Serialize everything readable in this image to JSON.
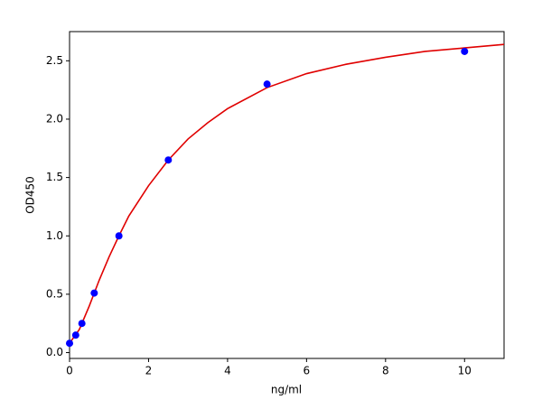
{
  "chart_data": {
    "type": "scatter",
    "x_label": "ng/ml",
    "y_label": "OD450",
    "xlim": [
      0,
      11
    ],
    "ylim": [
      -0.05,
      2.75
    ],
    "xticks": [
      0,
      2,
      4,
      6,
      8,
      10
    ],
    "yticks": [
      {
        "value": 0,
        "label": "0.0"
      },
      0.5,
      {
        "value": 1,
        "label": "1.0"
      },
      1.5,
      {
        "value": 2,
        "label": "2.0"
      },
      2.5
    ],
    "grid": false,
    "series": [
      {
        "type": "line",
        "color": "#e00000",
        "x": [
          0,
          0.25,
          0.5,
          0.75,
          1,
          1.25,
          1.5,
          2,
          2.5,
          3,
          3.5,
          4,
          5,
          6,
          7,
          8,
          9,
          10,
          11
        ],
        "values": [
          0.08,
          0.2,
          0.4,
          0.62,
          0.82,
          1.0,
          1.17,
          1.43,
          1.65,
          1.83,
          1.97,
          2.09,
          2.27,
          2.39,
          2.47,
          2.53,
          2.58,
          2.61,
          2.64
        ]
      },
      {
        "type": "scatter",
        "color": "#0000ff",
        "x": [
          0,
          0.156,
          0.3125,
          0.625,
          1.25,
          2.5,
          5,
          10
        ],
        "values": [
          0.08,
          0.15,
          0.25,
          0.51,
          1.0,
          1.65,
          2.3,
          2.58
        ]
      }
    ]
  }
}
